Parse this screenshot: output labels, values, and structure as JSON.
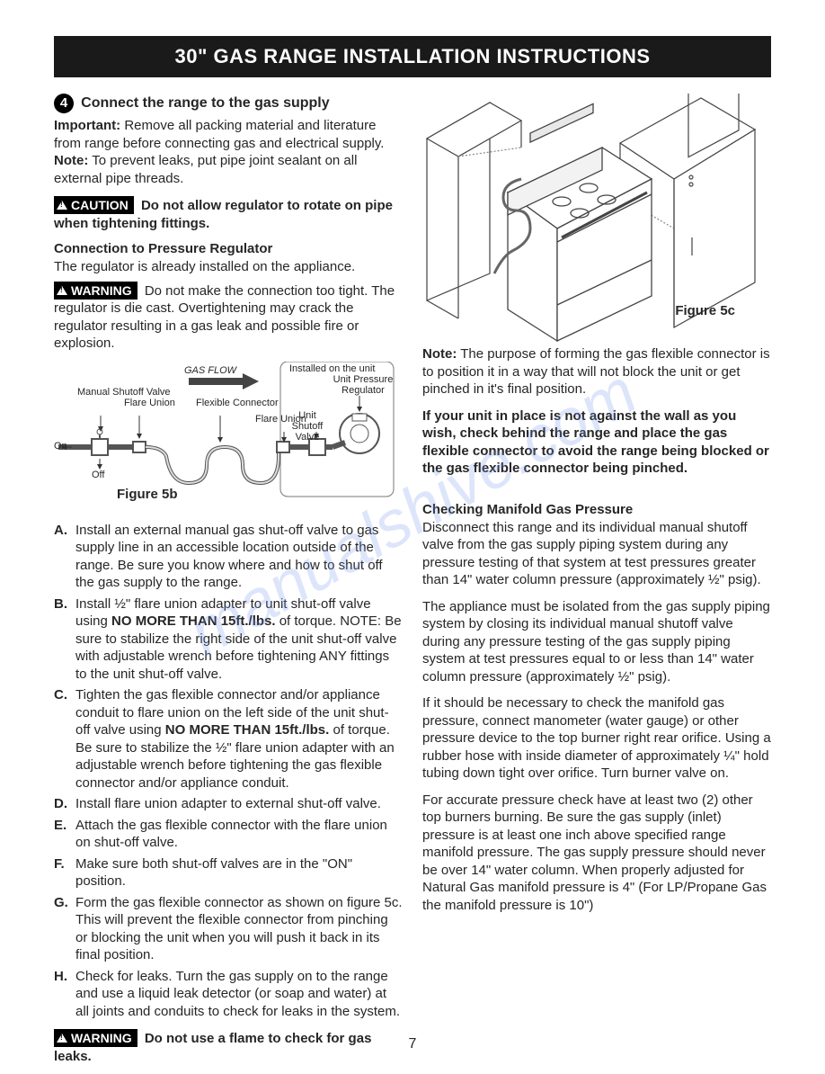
{
  "title": "30\" GAS RANGE INSTALLATION INSTRUCTIONS",
  "step": {
    "num": "4",
    "heading": "Connect the range to the gas supply"
  },
  "important": {
    "label": "Important:",
    "text": "Remove all packing material and literature from range before connecting gas and electrical supply."
  },
  "note1": {
    "label": "Note:",
    "text": "To prevent leaks, put pipe joint sealant on all external pipe threads."
  },
  "caution": {
    "label": "CAUTION",
    "text": "Do not allow regulator to rotate on pipe when tightening fittings."
  },
  "subheading1": "Connection to Pressure Regulator",
  "subtext1": "The regulator is already installed on the appliance.",
  "warning1": {
    "label": "WARNING",
    "text": "Do not make the connection too tight. The regulator is die cast. Overtightening may crack the regulator resulting in a gas leak and possible fire or explosion."
  },
  "fig5b": {
    "caption": "Figure 5b",
    "gas_flow": "GAS FLOW",
    "installed": "Installed on the unit",
    "manual_shutoff": "Manual Shutoff Valve",
    "flare_union1": "Flare Union",
    "flexible_connector": "Flexible Connector",
    "unit_pressure_regulator": "Unit Pressure Regulator",
    "unit_shutoff": "Unit Shutoff Valve",
    "flare_union2": "Flare Union",
    "on": "On",
    "off": "Off"
  },
  "steps": [
    {
      "l": "A.",
      "t": "Install an external manual gas shut-off valve to gas supply line in an accessible location outside of the range. Be sure you know where and how to shut off the gas supply to the range."
    },
    {
      "l": "B.",
      "t": "Install ½\" flare union adapter to unit shut-off valve using <b>NO MORE THAN 15ft./lbs.</b> of torque. NOTE: Be sure to stabilize the right side of the unit shut-off valve with adjustable wrench before tightening ANY fittings to the unit shut-off valve."
    },
    {
      "l": "C.",
      "t": "Tighten the gas flexible connector and/or appliance conduit to flare union on the left side of the unit shut-off valve using <b>NO MORE THAN 15ft./lbs.</b> of torque. Be sure to stabilize the ½\" flare union adapter with an adjustable wrench before tightening the gas flexible connector and/or appliance conduit."
    },
    {
      "l": "D.",
      "t": "Install flare union adapter to external shut-off valve."
    },
    {
      "l": "E.",
      "t": "Attach the gas flexible connector with the flare union on shut-off valve."
    },
    {
      "l": "F.",
      "t": "Make sure both shut-off valves are in the \"ON\" position."
    },
    {
      "l": "G.",
      "t": "Form the gas flexible connector as shown on figure 5c. This will prevent the flexible connector from pinching or blocking the unit when you will push it back in its final position."
    },
    {
      "l": "H.",
      "t": "Check for leaks. Turn the gas supply on to the range and use a liquid leak detector (or soap and water) at all joints and conduits to check for leaks in the system."
    }
  ],
  "warning2": {
    "label": "WARNING",
    "text": "Do not use a flame to check for gas leaks."
  },
  "fig5c": {
    "caption": "Figure 5c"
  },
  "note2": {
    "label": "Note:",
    "text": "The purpose of forming the gas flexible connector is to position it in a way that will not block the unit or get pinched in it's final position."
  },
  "bold_para": "If your unit in place is not against the wall as you wish, check behind the range and place the gas flexible connector to avoid the range being blocked or the gas flexible connector being pinched.",
  "check_heading": "Checking Manifold Gas Pressure",
  "check_p1": "Disconnect this range and its individual manual shutoff valve from the gas supply piping system during any pressure testing of that system at test pressures greater than 14\" water column pressure (approximately ½\" psig).",
  "check_p2": "The appliance must be isolated from the gas supply piping system by closing its individual manual shutoff valve during any pressure testing of the gas supply piping system at test pressures equal to or less than 14\" water column pressure (approximately ½\" psig).",
  "check_p3": "If it should be necessary to check the manifold gas pressure, connect manometer (water gauge) or other pressure device to the top burner right rear orifice. Using a rubber hose with inside diameter of approximately ¼\" hold tubing down tight over orifice. Turn burner valve on.",
  "check_p4": "For accurate pressure check have at least two (2) other top burners burning. Be sure the gas supply (inlet) pressure is at least one inch above specified range manifold pressure. The gas supply pressure should never be over 14\" water column. When properly adjusted for Natural Gas manifold pressure is 4\" (For LP/Propane Gas the manifold pressure is 10\")",
  "page": "7",
  "watermark": "manualshive.com"
}
